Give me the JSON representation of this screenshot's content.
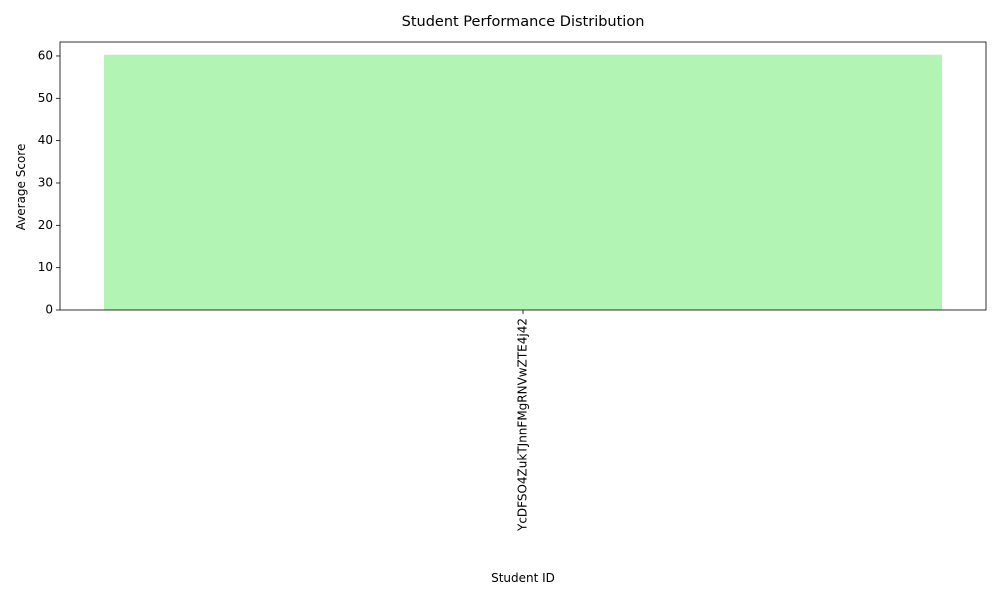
{
  "chart_data": {
    "type": "bar",
    "title": "Student Performance Distribution",
    "xlabel": "Student ID",
    "ylabel": "Average Score",
    "categories": [
      "YcDFSO4ZukTJnnFMgRNVwZTE4j42"
    ],
    "values": [
      60.3
    ],
    "ylim": [
      0,
      63.3
    ],
    "yticks": [
      0,
      10,
      20,
      30,
      40,
      50,
      60
    ],
    "x_tick_rotation": "vertical",
    "grid": false,
    "legend": "none",
    "colors": {
      "bar": "#b2f4b4",
      "axis": "#000000",
      "text": "#000000",
      "background": "#ffffff"
    }
  }
}
